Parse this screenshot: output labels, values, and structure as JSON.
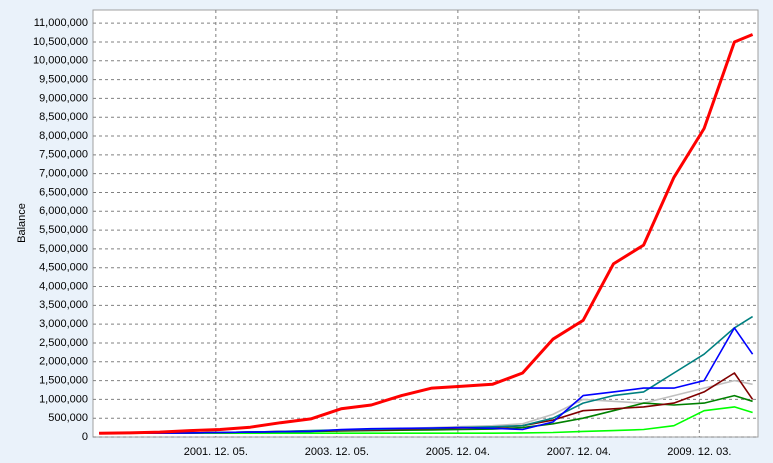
{
  "chart_data": {
    "type": "line",
    "y_label": "Balance",
    "x": [
      2000,
      2000.5,
      2001,
      2001.5,
      2002,
      2002.5,
      2003,
      2003.5,
      2004,
      2004.5,
      2005,
      2005.5,
      2006,
      2006.5,
      2007,
      2007.5,
      2008,
      2008.5,
      2009,
      2009.5,
      2010,
      2010.5,
      2010.8
    ],
    "xlim": [
      1999.9,
      2010.89
    ],
    "xticks": [
      {
        "value": 2001.93,
        "label": "2001. 12. 05."
      },
      {
        "value": 2003.93,
        "label": "2003. 12. 05."
      },
      {
        "value": 2005.93,
        "label": "2005. 12. 04."
      },
      {
        "value": 2007.93,
        "label": "2007. 12. 04."
      },
      {
        "value": 2009.92,
        "label": "2009. 12. 03."
      }
    ],
    "ylim": [
      0,
      11350000
    ],
    "yticks": [
      0,
      {
        "value": 500000,
        "label": "500,000"
      },
      {
        "value": 1000000,
        "label": "1,000,000"
      },
      {
        "value": 1500000,
        "label": "1,500,000"
      },
      {
        "value": 2000000,
        "label": "2,000,000"
      },
      {
        "value": 2500000,
        "label": "2,500,000"
      },
      {
        "value": 3000000,
        "label": "3,000,000"
      },
      {
        "value": 3500000,
        "label": "3,500,000"
      },
      {
        "value": 4000000,
        "label": "4,000,000"
      },
      {
        "value": 4500000,
        "label": "4,500,000"
      },
      {
        "value": 5000000,
        "label": "5,000,000"
      },
      {
        "value": 5500000,
        "label": "5,500,000"
      },
      {
        "value": 6000000,
        "label": "6,000,000"
      },
      {
        "value": 6500000,
        "label": "6,500,000"
      },
      {
        "value": 7000000,
        "label": "7,000,000"
      },
      {
        "value": 7500000,
        "label": "7,500,000"
      },
      {
        "value": 8000000,
        "label": "8,000,000"
      },
      {
        "value": 8500000,
        "label": "8,500,000"
      },
      {
        "value": 9000000,
        "label": "9,000,000"
      },
      {
        "value": 9500000,
        "label": "9,500,000"
      },
      {
        "value": 10000000,
        "label": "10,000,000"
      },
      {
        "value": 10500000,
        "label": "10,500,000"
      },
      {
        "value": 11000000,
        "label": "11,000,000"
      }
    ],
    "grid": true,
    "series": [
      {
        "color": "#c0c0c0",
        "values": [
          100000,
          100000,
          100000,
          110000,
          120000,
          130000,
          140000,
          160000,
          180000,
          200000,
          220000,
          250000,
          280000,
          300000,
          350000,
          600000,
          1000000,
          950000,
          900000,
          1100000,
          1300000,
          1500000,
          1400000
        ]
      },
      {
        "color": "#00ff00",
        "values": [
          100000,
          100000,
          100000,
          100000,
          100000,
          100000,
          100000,
          100000,
          100000,
          100000,
          100000,
          100000,
          100000,
          100000,
          110000,
          120000,
          150000,
          170000,
          200000,
          300000,
          700000,
          800000,
          650000
        ]
      },
      {
        "color": "#008000",
        "values": [
          100000,
          100000,
          100000,
          110000,
          120000,
          130000,
          140000,
          150000,
          160000,
          170000,
          180000,
          190000,
          200000,
          210000,
          250000,
          350000,
          500000,
          700000,
          900000,
          850000,
          900000,
          1100000,
          950000
        ]
      },
      {
        "color": "#800000",
        "values": [
          100000,
          100000,
          100000,
          110000,
          120000,
          130000,
          150000,
          160000,
          170000,
          180000,
          200000,
          220000,
          240000,
          250000,
          300000,
          450000,
          700000,
          750000,
          800000,
          900000,
          1200000,
          1700000,
          1000000
        ]
      },
      {
        "color": "#008080",
        "values": [
          100000,
          100000,
          100000,
          110000,
          120000,
          130000,
          150000,
          170000,
          190000,
          200000,
          220000,
          230000,
          250000,
          270000,
          300000,
          500000,
          900000,
          1100000,
          1200000,
          1700000,
          2200000,
          2900000,
          3200000
        ]
      },
      {
        "color": "#0000ff",
        "values": [
          100000,
          100000,
          100000,
          110000,
          120000,
          130000,
          140000,
          150000,
          200000,
          220000,
          230000,
          240000,
          250000,
          230000,
          200000,
          400000,
          1100000,
          1200000,
          1300000,
          1300000,
          1500000,
          2900000,
          2200000
        ]
      },
      {
        "color": "#ff0000",
        "values": [
          100000,
          110000,
          130000,
          170000,
          200000,
          260000,
          380000,
          480000,
          750000,
          850000,
          1100000,
          1300000,
          1350000,
          1400000,
          1700000,
          2600000,
          3100000,
          4600000,
          5100000,
          6900000,
          8200000,
          10500000,
          10700000
        ]
      }
    ]
  }
}
